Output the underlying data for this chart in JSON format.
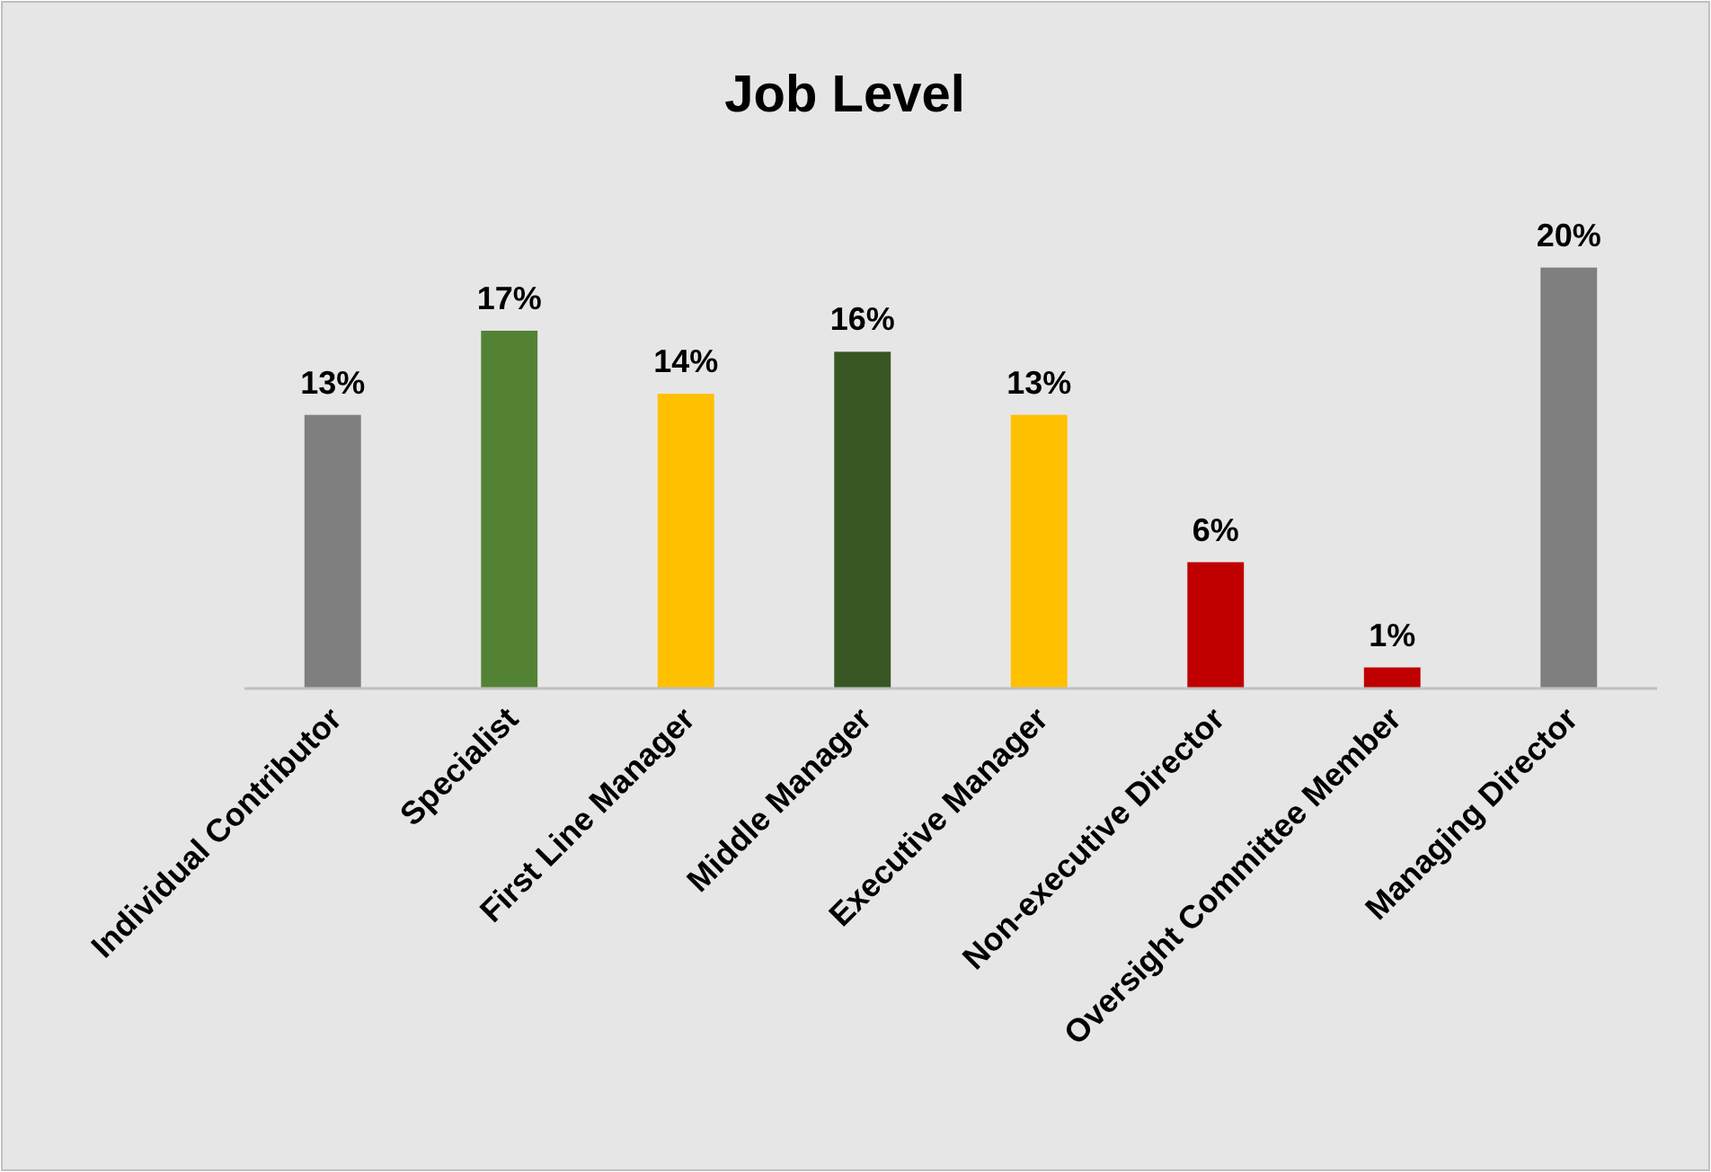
{
  "chart_data": {
    "type": "bar",
    "title": "Job Level",
    "categories": [
      "Individual Contributor",
      "Specialist",
      "First Line Manager",
      "Middle Manager",
      "Executive Manager",
      "Non-executive Director",
      "Oversight Committee Member",
      "Managing Director"
    ],
    "values": [
      13,
      17,
      14,
      16,
      13,
      6,
      1,
      20
    ],
    "value_labels": [
      "13%",
      "17%",
      "14%",
      "16%",
      "13%",
      "6%",
      "1%",
      "20%"
    ],
    "colors": [
      "#7f7f7f",
      "#548235",
      "#ffc000",
      "#375623",
      "#ffc000",
      "#c00000",
      "#c00000",
      "#7f7f7f"
    ],
    "data_labels": true
  }
}
